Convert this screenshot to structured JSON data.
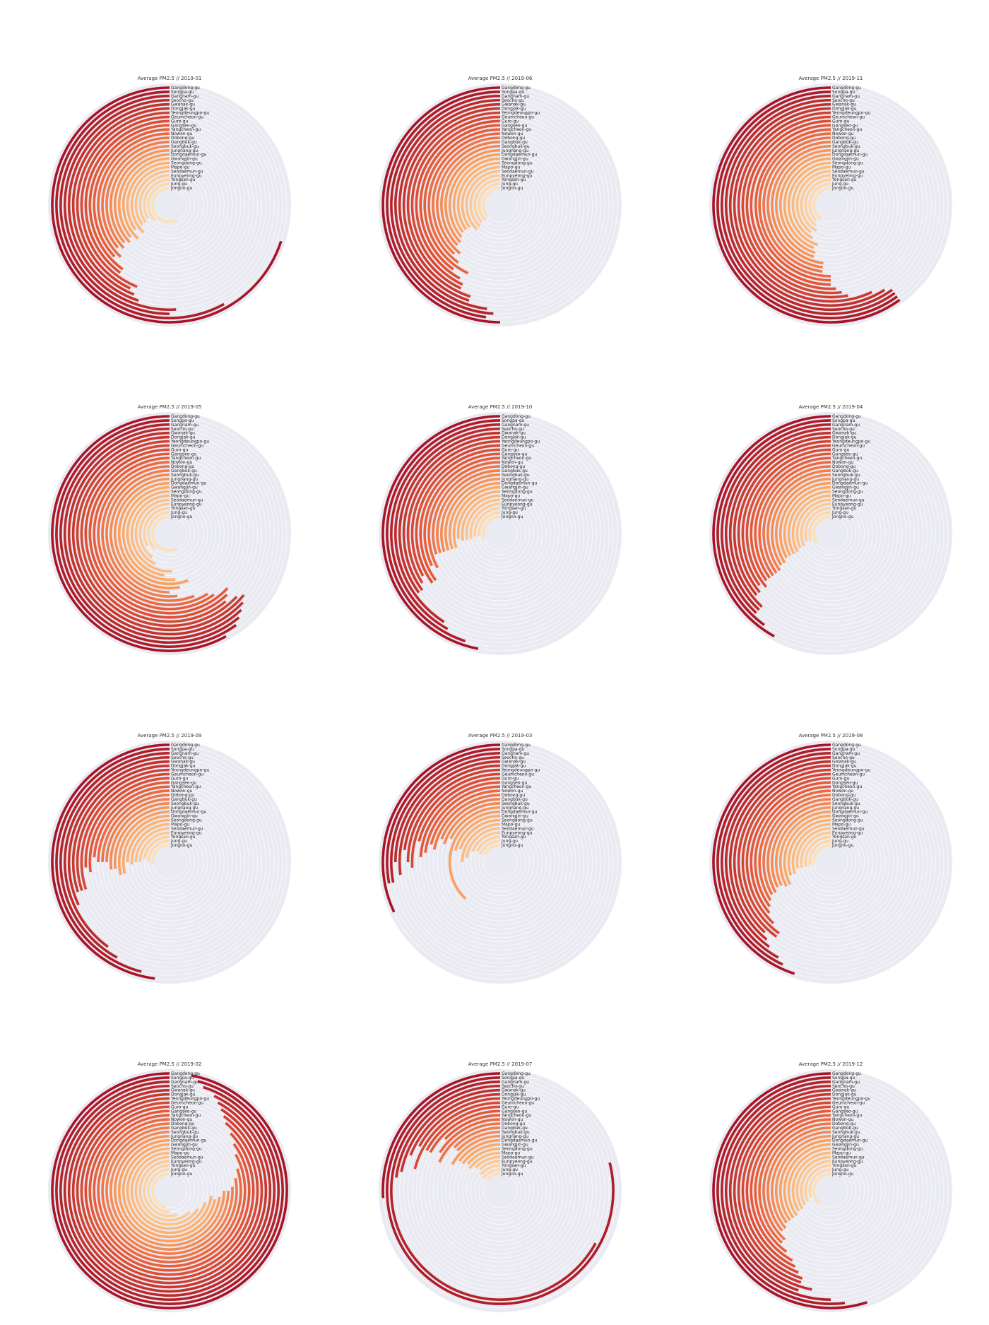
{
  "chart_data": {
    "type": "radial_bar",
    "title_prefix": "Average PM2.5 // ",
    "districts": [
      "Gangdong-gu",
      "Songpa-gu",
      "Gangnam-gu",
      "Seocho-gu",
      "Gwanak-gu",
      "Dongjak-gu",
      "Yeongdeungpo-gu",
      "Geumcheon-gu",
      "Guro-gu",
      "Gangseo-gu",
      "Yangcheon-gu",
      "Nowon-gu",
      "Dobong-gu",
      "Gangbuk-gu",
      "Seongbuk-gu",
      "Jungnang-gu",
      "Dongdaemun-gu",
      "Gwangjin-gu",
      "Seongdong-gu",
      "Mapo-gu",
      "Seodaemun-gu",
      "Eunpyeong-gu",
      "Yongsan-gu",
      "Jung-gu",
      "Jongno-gu"
    ],
    "max_value": 100,
    "months": [
      {
        "title": "Average PM2.5 // 2019-01",
        "values": [
          70,
          58,
          50,
          51,
          45,
          44,
          43,
          44,
          40,
          40,
          37,
          38,
          36,
          37,
          36,
          37,
          36,
          38,
          35,
          38,
          35,
          35,
          34,
          38,
          58
        ]
      },
      {
        "title": "Average PM2.5 // 2019-05",
        "values": [
          58,
          60,
          61,
          62,
          63,
          64,
          63,
          61,
          62,
          63,
          60,
          59,
          56,
          52,
          50,
          53,
          56,
          52,
          48,
          51,
          43,
          40,
          33,
          38,
          58
        ]
      },
      {
        "title": "Average PM2.5 // 2019-09",
        "values": [
          48,
          46,
          42,
          40,
          32,
          30,
          30,
          30,
          26,
          27,
          24,
          25,
          25,
          25,
          27,
          27,
          29,
          29,
          25,
          26,
          25,
          25,
          23,
          25,
          27
        ]
      },
      {
        "title": "Average PM2.5 // 2019-02",
        "values": [
          97,
          96,
          95,
          93,
          92,
          91,
          90,
          89,
          87,
          85,
          83,
          80,
          78,
          76,
          75,
          75,
          73,
          72,
          73,
          70,
          66,
          62,
          55,
          50,
          47
        ]
      },
      {
        "title": "Average PM2.5 // 2019-06",
        "values": [
          50,
          48,
          49,
          48,
          45,
          45,
          43,
          43,
          42,
          40,
          43,
          40,
          38,
          39,
          37,
          37,
          36,
          35,
          35,
          35,
          38,
          38,
          37,
          38,
          37
        ]
      },
      {
        "title": "Average PM2.5 // 2019-10",
        "values": [
          47,
          45,
          42,
          41,
          35,
          35,
          34,
          33,
          35,
          35,
          32,
          33,
          30,
          30,
          30,
          30,
          30,
          30,
          27,
          28,
          28,
          28,
          27,
          27,
          30
        ]
      },
      {
        "title": "Average PM2.5 // 2019-03",
        "values": [
          32,
          28,
          28,
          25,
          27,
          23,
          25,
          26,
          21,
          24,
          23,
          21,
          22,
          19,
          20,
          18,
          38,
          21,
          20,
          25,
          23,
          19,
          18,
          19,
          18
        ]
      },
      {
        "title": "Average PM2.5 // 2019-07",
        "values": [
          26,
          79,
          67,
          23,
          22,
          19,
          17,
          21,
          17,
          17,
          13,
          16,
          18,
          13,
          13,
          17,
          15,
          15,
          14,
          15,
          13,
          12,
          14,
          15,
          14
        ]
      },
      {
        "title": "Average PM2.5 // 2019-11",
        "values": [
          60,
          60,
          60,
          60,
          59,
          57,
          53,
          52,
          51,
          50,
          50,
          50,
          48,
          48,
          48,
          45,
          45,
          44,
          45,
          42,
          40,
          42,
          40,
          38,
          41
        ]
      },
      {
        "title": "Average PM2.5 // 2019-04",
        "values": [
          42,
          40,
          38,
          38,
          38,
          36,
          36,
          35,
          36,
          35,
          35,
          35,
          35,
          35,
          34,
          34,
          33,
          33,
          33,
          33,
          32,
          32,
          30,
          31,
          35
        ]
      },
      {
        "title": "Average PM2.5 // 2019-08",
        "values": [
          45,
          43,
          42,
          40,
          39,
          38,
          40,
          40,
          38,
          36,
          35,
          34,
          33,
          33,
          32,
          32,
          33,
          33,
          30,
          30,
          28,
          28,
          28,
          27,
          26
        ]
      },
      {
        "title": "Average PM2.5 // 2019-12",
        "values": [
          55,
          52,
          50,
          45,
          47,
          45,
          45,
          44,
          43,
          42,
          40,
          38,
          38,
          36,
          36,
          35,
          35,
          35,
          35,
          34,
          34,
          33,
          32,
          30,
          38
        ]
      }
    ]
  }
}
